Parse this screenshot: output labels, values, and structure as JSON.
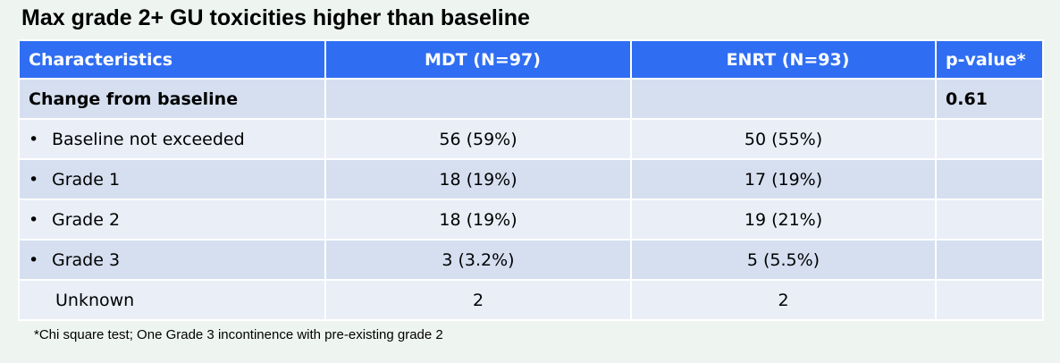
{
  "title": "Max grade 2+ GU toxicities higher than baseline",
  "table": {
    "headers": [
      "Characteristics",
      "MDT (N=97)",
      "ENRT (N=93)",
      "p-value*"
    ],
    "rows": [
      {
        "label": "Change from baseline",
        "mdt": "",
        "enrt": "",
        "p": "0.61"
      },
      {
        "label": "Baseline not exceeded",
        "mdt": "56 (59%)",
        "enrt": "50 (55%)",
        "p": ""
      },
      {
        "label": "Grade 1",
        "mdt": "18 (19%)",
        "enrt": "17 (19%)",
        "p": ""
      },
      {
        "label": "Grade 2",
        "mdt": "18 (19%)",
        "enrt": "19 (21%)",
        "p": ""
      },
      {
        "label": "Grade 3",
        "mdt": "3 (3.2%)",
        "enrt": "5 (5.5%)",
        "p": ""
      },
      {
        "label": "Unknown",
        "mdt": "2",
        "enrt": "2",
        "p": ""
      }
    ],
    "bullet": "•"
  },
  "footnote": "*Chi square test; One Grade 3 incontinence  with pre-existing grade 2",
  "colors": {
    "header_bg": "#2f6ef2",
    "row_odd": "#d5dff0",
    "row_even": "#e9eef7",
    "page_bg": "#eef5f1"
  }
}
